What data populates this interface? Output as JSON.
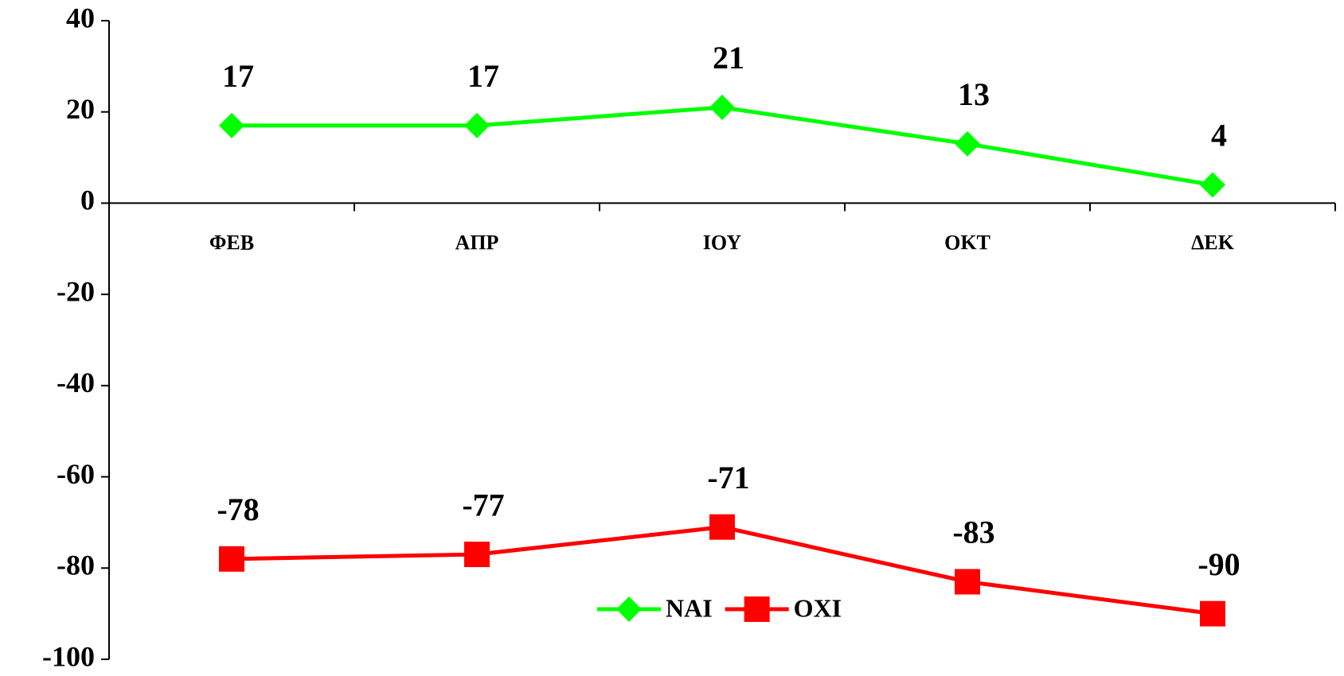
{
  "chart_data": {
    "type": "line",
    "categories": [
      "ΦΕΒ",
      "ΑΠΡ",
      "ΙΟΥ",
      "ΟΚΤ",
      "ΔΕΚ"
    ],
    "series": [
      {
        "name": "NAI",
        "color": "#00ff00",
        "marker": "diamond",
        "values": [
          17,
          17,
          21,
          13,
          4
        ]
      },
      {
        "name": "OXI",
        "color": "#ff0000",
        "marker": "square",
        "values": [
          -78,
          -77,
          -71,
          -83,
          -90
        ]
      }
    ],
    "ylim": [
      -100,
      40
    ],
    "yticks": [
      -100,
      -80,
      -60,
      -40,
      -20,
      0,
      20,
      40
    ],
    "grid": false,
    "legend": "bottom"
  }
}
